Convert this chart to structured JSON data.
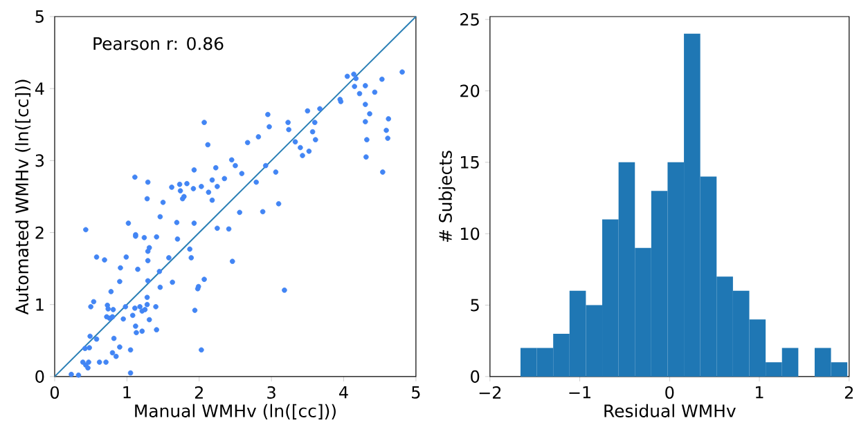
{
  "chart_data": [
    {
      "type": "scatter",
      "xlabel": "Manual WMHv (ln([cc]))",
      "ylabel": "Automated WMHv (ln([cc]))",
      "annotations": [
        "Pearson r: 0.86"
      ],
      "xlim": [
        0,
        5
      ],
      "ylim": [
        0,
        5
      ],
      "xticks": [
        0,
        1,
        2,
        3,
        4,
        5
      ],
      "yticks": [
        0,
        1,
        2,
        3,
        4,
        5
      ],
      "series": [
        {
          "type": "scatter",
          "marker": "circle",
          "color": "#4285f4",
          "x": [
            2.07,
            2.12,
            2.45,
            2.5,
            2.59,
            1.93,
            2.23,
            1.11,
            1.29,
            1.28,
            1.62,
            1.73,
            1.74,
            1.83,
            1.92,
            2.03,
            2.18,
            2.25,
            2.13,
            2.18,
            2.35,
            1.77,
            1.79,
            1.5,
            1.46,
            1.02,
            1.69,
            1.93,
            2.25,
            2.41,
            2.56,
            0.43,
            1.12,
            1.12,
            1.24,
            1.41,
            1.7,
            1.31,
            1.29,
            1.87,
            1.89,
            1.58,
            1.29,
            0.99,
            0.58,
            0.69,
            0.91,
            1.15,
            1.45,
            0.9,
            1.29,
            1.46,
            1.63,
            2.46,
            2.07,
            1.99,
            1.98,
            0.78,
            1.94,
            0.54,
            0.5,
            0.73,
            0.74,
            0.81,
            0.72,
            0.8,
            0.76,
            0.98,
            0.95,
            1.08,
            1.11,
            1.18,
            1.21,
            1.25,
            1.28,
            1.28,
            1.4,
            1.31,
            1.12,
            1.13,
            1.21,
            1.41,
            0.49,
            0.58,
            0.82,
            0.42,
            0.48,
            0.9,
            0.8,
            0.85,
            1.05,
            2.03,
            0.39,
            0.47,
            0.43,
            0.46,
            0.62,
            0.71,
            0.23,
            0.33,
            1.05,
            4.81,
            4.05,
            4.14,
            4.17,
            4.15,
            4.3,
            4.53,
            4.22,
            4.43,
            4.3,
            4.36,
            3.95,
            3.96,
            4.62,
            4.3,
            4.59,
            4.61,
            4.32,
            4.31,
            4.54,
            2.95,
            2.97,
            2.82,
            2.67,
            3.23,
            3.24,
            3.5,
            3.67,
            3.6,
            3.57,
            3.61,
            3.33,
            3.4,
            3.43,
            3.52,
            2.92,
            3.06,
            2.79,
            2.88,
            3.1,
            3.18
          ],
          "values": [
            3.53,
            3.22,
            3.01,
            2.93,
            2.82,
            2.87,
            2.9,
            2.77,
            2.7,
            2.47,
            2.63,
            2.67,
            2.58,
            2.68,
            2.61,
            2.64,
            2.73,
            2.64,
            2.56,
            2.45,
            2.75,
            2.47,
            2.5,
            2.42,
            2.22,
            2.13,
            2.14,
            2.13,
            2.06,
            2.05,
            2.28,
            2.04,
            1.97,
            1.95,
            1.93,
            1.94,
            1.91,
            1.79,
            1.74,
            1.77,
            1.65,
            1.65,
            1.61,
            1.66,
            1.66,
            1.62,
            1.51,
            1.49,
            1.46,
            1.32,
            1.33,
            1.24,
            1.31,
            1.6,
            1.35,
            1.25,
            1.22,
            1.18,
            0.92,
            1.04,
            0.97,
            0.99,
            0.94,
            0.93,
            0.83,
            0.83,
            0.81,
            0.97,
            0.8,
            0.85,
            0.95,
            0.97,
            0.91,
            0.93,
            1.0,
            1.1,
            0.97,
            0.79,
            0.7,
            0.61,
            0.63,
            0.65,
            0.56,
            0.52,
            0.53,
            0.39,
            0.4,
            0.41,
            0.33,
            0.28,
            0.37,
            0.37,
            0.2,
            0.2,
            0.16,
            0.12,
            0.2,
            0.2,
            0.03,
            0.02,
            0.05,
            4.23,
            4.17,
            4.2,
            4.14,
            4.03,
            4.04,
            4.13,
            3.93,
            3.95,
            3.78,
            3.65,
            3.85,
            3.82,
            3.58,
            3.54,
            3.42,
            3.31,
            3.29,
            3.05,
            2.84,
            3.64,
            3.47,
            3.33,
            3.25,
            3.53,
            3.43,
            3.69,
            3.72,
            3.53,
            3.4,
            3.29,
            3.26,
            3.18,
            3.07,
            3.13,
            2.93,
            2.84,
            2.7,
            2.29,
            2.4,
            1.2
          ]
        },
        {
          "type": "line",
          "color": "#2a7fb5",
          "x": [
            0,
            5
          ],
          "values": [
            0,
            5
          ]
        }
      ]
    },
    {
      "type": "histogram",
      "xlabel": "Residual WMHv",
      "ylabel": "# Subjects",
      "color": "#1f77b4",
      "bins": [
        -1.66,
        -1.478,
        -1.296,
        -1.114,
        -0.932,
        -0.75,
        -0.568,
        -0.386,
        -0.204,
        -0.022,
        0.16,
        0.342,
        0.524,
        0.706,
        0.888,
        1.07,
        1.252,
        1.434,
        1.616,
        1.798,
        1.98
      ],
      "values": [
        2,
        2,
        3,
        6,
        5,
        11,
        15,
        9,
        13,
        15,
        24,
        14,
        7,
        6,
        4,
        1,
        2,
        0,
        2,
        1
      ],
      "xlim": [
        -2,
        2
      ],
      "ylim": [
        0,
        25.2
      ],
      "xticks": [
        {
          "value": -2,
          "label": "−2"
        },
        {
          "value": -1,
          "label": "−1"
        },
        0,
        1,
        2
      ],
      "yticks": [
        0,
        5,
        10,
        15,
        20,
        25
      ]
    }
  ]
}
